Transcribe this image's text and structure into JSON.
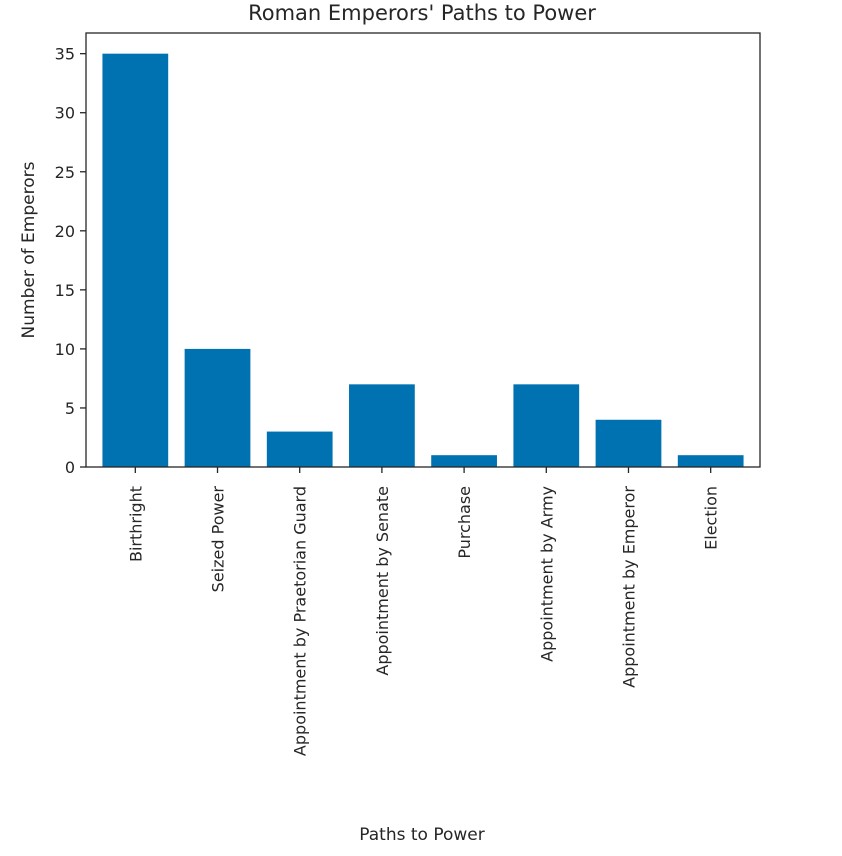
{
  "chart_data": {
    "type": "bar",
    "title": "Roman Emperors' Paths to Power",
    "xlabel": "Paths to Power",
    "ylabel": "Number of Emperors",
    "categories": [
      "Birthright",
      "Seized Power",
      "Appointment by Praetorian Guard",
      "Appointment by Senate",
      "Purchase",
      "Appointment by Army",
      "Appointment by Emperor",
      "Election"
    ],
    "values": [
      35,
      10,
      3,
      7,
      1,
      7,
      4,
      1
    ],
    "ylim": [
      0,
      36.75
    ],
    "yticks": [
      0,
      5,
      10,
      15,
      20,
      25,
      30,
      35
    ],
    "grid": false,
    "bar_color": "#0072b2"
  }
}
